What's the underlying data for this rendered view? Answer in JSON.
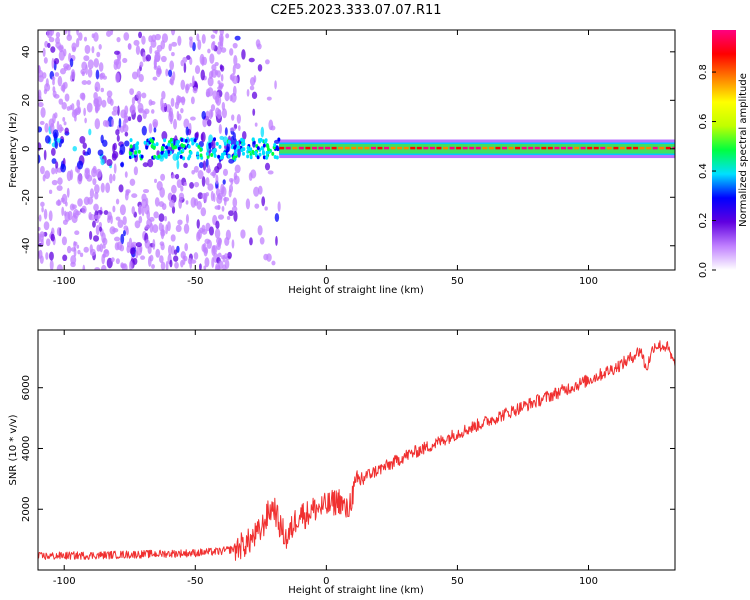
{
  "figure_title": "C2E5.2023.333.07.07.R11",
  "chart_data": [
    {
      "type": "heatmap",
      "title": "",
      "xlabel": "Height of straight line (km)",
      "ylabel": "Frequency (Hz)",
      "xlim": [
        -110,
        133
      ],
      "ylim": [
        -50,
        49
      ],
      "x_ticks": [
        -100,
        -50,
        0,
        50,
        100
      ],
      "y_ticks": [
        -40,
        -20,
        0,
        20,
        40
      ],
      "colorbar": {
        "label": "Normalized spectral amplitude",
        "range": [
          0.0,
          0.97
        ],
        "ticks": [
          0.0,
          0.2,
          0.4,
          0.6,
          0.8
        ],
        "colors": [
          "#ffffff",
          "#c080ff",
          "#6000e0",
          "#0000ff",
          "#00e0ff",
          "#00ff40",
          "#c0ff00",
          "#ffff00",
          "#ff8000",
          "#ff0000",
          "#ff0080"
        ]
      },
      "regions": [
        {
          "x_range": [
            -110,
            -33
          ],
          "description": "broadband noise speckle",
          "freq_spread": [
            -50,
            49
          ]
        },
        {
          "x_range": [
            -33,
            -18
          ],
          "description": "sparse speckle",
          "freq_spread": [
            -50,
            49
          ]
        },
        {
          "x_range": [
            -18,
            133
          ],
          "description": "narrow signal band near 0 Hz",
          "freq_spread": [
            -3,
            3
          ]
        }
      ],
      "signal_line": {
        "frequency_hz": 0,
        "x_range": [
          -110,
          133
        ]
      }
    },
    {
      "type": "line",
      "title": "",
      "xlabel": "Height of straight line (km)",
      "ylabel": "SNR (10 * v/v)",
      "xlim": [
        -110,
        133
      ],
      "ylim": [
        0,
        7900
      ],
      "x_ticks": [
        -100,
        -50,
        0,
        50,
        100
      ],
      "y_ticks": [
        2000,
        4000,
        6000
      ],
      "series": [
        {
          "color": "#f03030",
          "x": [
            -110,
            -100,
            -90,
            -80,
            -70,
            -60,
            -50,
            -40,
            -35,
            -30,
            -25,
            -22,
            -20,
            -18,
            -15,
            -12,
            -10,
            -8,
            -5,
            0,
            5,
            8,
            10,
            12,
            15,
            20,
            25,
            30,
            40,
            50,
            60,
            70,
            80,
            90,
            100,
            110,
            115,
            120,
            122,
            125,
            130,
            133
          ],
          "values": [
            450,
            470,
            480,
            500,
            520,
            540,
            560,
            620,
            700,
            900,
            1300,
            1900,
            2100,
            1500,
            1000,
            1600,
            1900,
            1800,
            2000,
            2100,
            2300,
            1900,
            2500,
            2900,
            3100,
            3300,
            3500,
            3750,
            4100,
            4500,
            4850,
            5200,
            5550,
            5900,
            6250,
            6650,
            6900,
            7250,
            6600,
            7400,
            7350,
            6700
          ]
        }
      ]
    }
  ]
}
